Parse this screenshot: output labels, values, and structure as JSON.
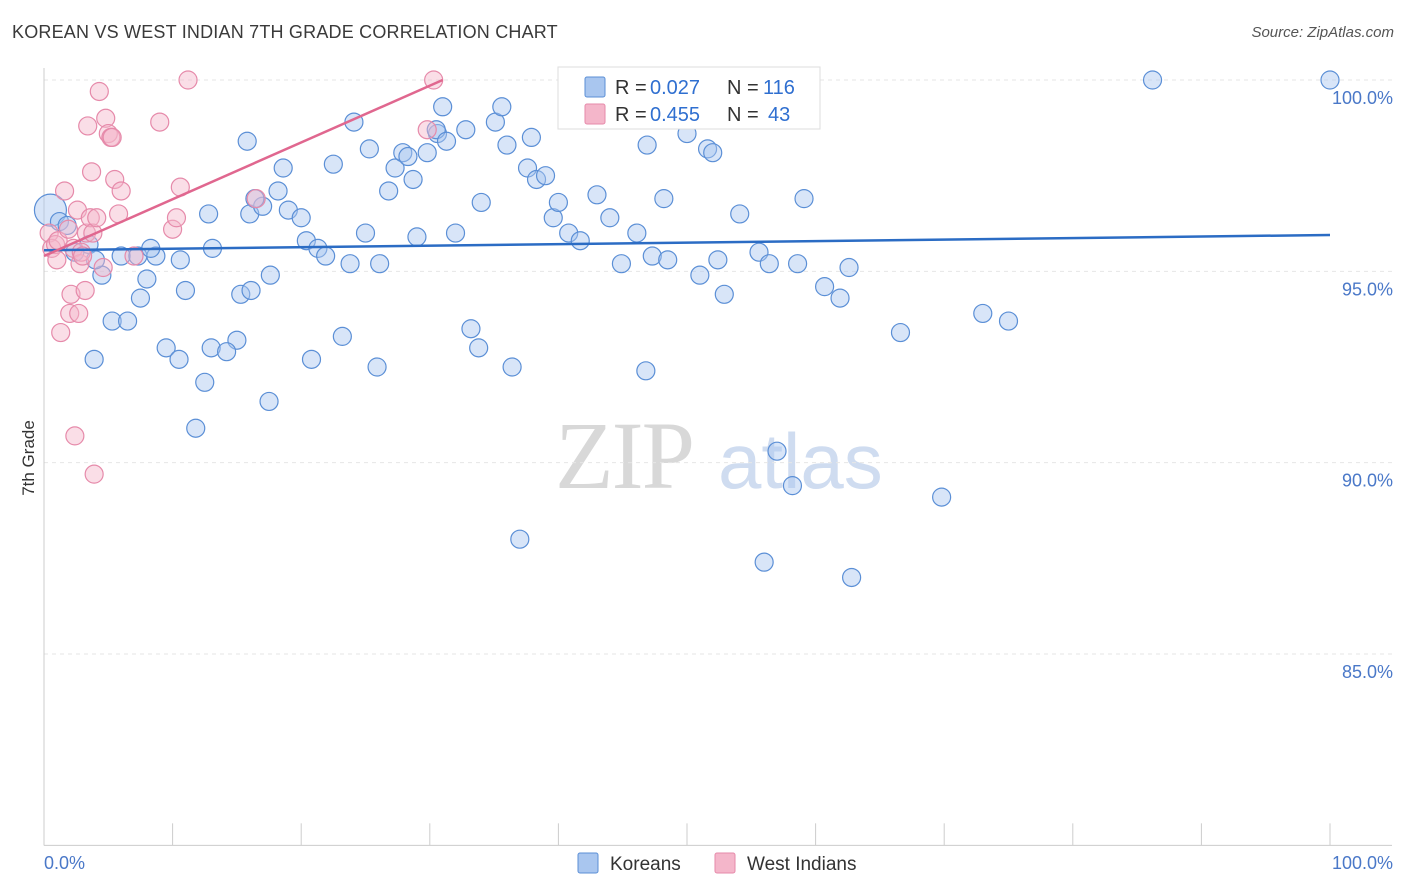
{
  "header": {
    "title": "KOREAN VS WEST INDIAN 7TH GRADE CORRELATION CHART",
    "source": "Source: ZipAtlas.com"
  },
  "chart_data": {
    "type": "scatter",
    "title": "KOREAN VS WEST INDIAN 7TH GRADE CORRELATION CHART",
    "ylabel": "7th Grade",
    "xlabel": "",
    "xlim": [
      0,
      100
    ],
    "ylim": [
      80.0,
      101.0
    ],
    "x_tick_labels": [
      "0.0%",
      "100.0%"
    ],
    "y_ticks": [
      {
        "value": 100,
        "label": "100.0%"
      },
      {
        "value": 95,
        "label": "95.0%"
      },
      {
        "value": 90,
        "label": "90.0%"
      },
      {
        "value": 85,
        "label": "85.0%"
      }
    ],
    "grid": true,
    "legend_position": "top-center",
    "watermark": "ZIPatlas",
    "colors": {
      "koreans_fill": "#a9c6ef",
      "koreans_stroke": "#5b8fd6",
      "koreans_line": "#2b6cc4",
      "west_indians_fill": "#f4b6ca",
      "west_indians_stroke": "#e68aaa",
      "west_indians_line": "#e0678f",
      "tick_text": "#4a78c8"
    },
    "legend": [
      {
        "name": "Koreans",
        "r_label": "R =",
        "r_value": "0.027",
        "n_label": "N =",
        "n_value": "116"
      },
      {
        "name": "West Indians",
        "r_label": "R =",
        "r_value": "0.455",
        "n_label": "N =",
        "n_value": "43"
      }
    ],
    "series": [
      {
        "name": "Koreans",
        "trend": {
          "x": [
            0,
            100
          ],
          "y": [
            95.55,
            95.95
          ]
        },
        "points": [
          [
            0.5,
            96.6
          ],
          [
            1.2,
            96.3
          ],
          [
            1.8,
            96.2
          ],
          [
            3.5,
            95.7
          ],
          [
            2.4,
            95.5
          ],
          [
            4.5,
            94.9
          ],
          [
            4.0,
            95.3
          ],
          [
            6.0,
            95.4
          ],
          [
            7.3,
            95.4
          ],
          [
            8.7,
            95.4
          ],
          [
            5.3,
            93.7
          ],
          [
            6.5,
            93.7
          ],
          [
            7.5,
            94.3
          ],
          [
            8.0,
            94.8
          ],
          [
            8.3,
            95.6
          ],
          [
            10.6,
            95.3
          ],
          [
            9.5,
            93.0
          ],
          [
            10.5,
            92.7
          ],
          [
            3.9,
            92.7
          ],
          [
            12.5,
            92.1
          ],
          [
            11.0,
            94.5
          ],
          [
            12.8,
            96.5
          ],
          [
            13.1,
            95.6
          ],
          [
            11.8,
            90.9
          ],
          [
            13.0,
            93.0
          ],
          [
            15.0,
            93.2
          ],
          [
            15.3,
            94.4
          ],
          [
            16.1,
            94.5
          ],
          [
            14.2,
            92.9
          ],
          [
            15.8,
            98.4
          ],
          [
            16.0,
            96.5
          ],
          [
            17.0,
            96.7
          ],
          [
            16.4,
            96.9
          ],
          [
            17.5,
            91.6
          ],
          [
            17.6,
            94.9
          ],
          [
            18.2,
            97.1
          ],
          [
            18.6,
            97.7
          ],
          [
            19.0,
            96.6
          ],
          [
            20.0,
            96.4
          ],
          [
            20.4,
            95.8
          ],
          [
            20.8,
            92.7
          ],
          [
            21.3,
            95.6
          ],
          [
            21.9,
            95.4
          ],
          [
            22.5,
            97.8
          ],
          [
            23.2,
            93.3
          ],
          [
            23.8,
            95.2
          ],
          [
            24.1,
            98.9
          ],
          [
            25.0,
            96.0
          ],
          [
            25.3,
            98.2
          ],
          [
            25.9,
            92.5
          ],
          [
            26.1,
            95.2
          ],
          [
            26.8,
            97.1
          ],
          [
            27.3,
            97.7
          ],
          [
            27.9,
            98.1
          ],
          [
            28.3,
            98.0
          ],
          [
            28.7,
            97.4
          ],
          [
            29.0,
            95.9
          ],
          [
            29.8,
            98.1
          ],
          [
            30.6,
            98.6
          ],
          [
            31.0,
            99.3
          ],
          [
            30.5,
            98.7
          ],
          [
            31.3,
            98.4
          ],
          [
            32.0,
            96.0
          ],
          [
            32.8,
            98.7
          ],
          [
            33.2,
            93.5
          ],
          [
            33.8,
            93.0
          ],
          [
            34.0,
            96.8
          ],
          [
            35.1,
            98.9
          ],
          [
            35.6,
            99.3
          ],
          [
            36.0,
            98.3
          ],
          [
            36.4,
            92.5
          ],
          [
            37.0,
            88.0
          ],
          [
            37.6,
            97.7
          ],
          [
            37.9,
            98.5
          ],
          [
            38.3,
            97.4
          ],
          [
            39.0,
            97.5
          ],
          [
            39.6,
            96.4
          ],
          [
            40.0,
            96.8
          ],
          [
            40.8,
            96.0
          ],
          [
            41.4,
            99.0
          ],
          [
            41.7,
            95.8
          ],
          [
            42.5,
            100.0
          ],
          [
            43.0,
            97.0
          ],
          [
            44.0,
            96.4
          ],
          [
            44.9,
            95.2
          ],
          [
            46.1,
            96.0
          ],
          [
            46.8,
            92.4
          ],
          [
            46.9,
            98.3
          ],
          [
            47.3,
            95.4
          ],
          [
            48.2,
            96.9
          ],
          [
            48.5,
            95.3
          ],
          [
            49.1,
            99.6
          ],
          [
            50.0,
            98.6
          ],
          [
            50.6,
            100.0
          ],
          [
            51.0,
            94.9
          ],
          [
            51.6,
            98.2
          ],
          [
            52.0,
            98.1
          ],
          [
            52.4,
            95.3
          ],
          [
            52.9,
            94.4
          ],
          [
            54.1,
            96.5
          ],
          [
            55.0,
            100.0
          ],
          [
            55.6,
            95.5
          ],
          [
            56.0,
            87.4
          ],
          [
            56.4,
            95.2
          ],
          [
            57.0,
            90.3
          ],
          [
            58.2,
            89.4
          ],
          [
            58.6,
            95.2
          ],
          [
            59.1,
            96.9
          ],
          [
            60.7,
            94.6
          ],
          [
            61.9,
            94.3
          ],
          [
            62.6,
            95.1
          ],
          [
            62.8,
            87.0
          ],
          [
            66.6,
            93.4
          ],
          [
            69.8,
            89.1
          ],
          [
            73.0,
            93.9
          ],
          [
            75.0,
            93.7
          ],
          [
            86.2,
            100.0
          ],
          [
            100.0,
            100.0
          ]
        ]
      },
      {
        "name": "West Indians",
        "trend": {
          "x": [
            0,
            31
          ],
          "y": [
            95.4,
            100.0
          ]
        },
        "points": [
          [
            0.4,
            96.0
          ],
          [
            0.6,
            95.6
          ],
          [
            0.9,
            95.7
          ],
          [
            1.0,
            95.3
          ],
          [
            1.1,
            95.8
          ],
          [
            1.3,
            93.4
          ],
          [
            1.6,
            97.1
          ],
          [
            1.9,
            96.1
          ],
          [
            2.0,
            93.9
          ],
          [
            2.1,
            94.4
          ],
          [
            2.3,
            95.6
          ],
          [
            2.4,
            90.7
          ],
          [
            2.6,
            96.6
          ],
          [
            2.7,
            93.9
          ],
          [
            2.8,
            95.2
          ],
          [
            2.9,
            95.5
          ],
          [
            3.0,
            95.4
          ],
          [
            3.2,
            94.5
          ],
          [
            3.3,
            96.0
          ],
          [
            3.4,
            98.8
          ],
          [
            3.6,
            96.4
          ],
          [
            3.7,
            97.6
          ],
          [
            3.8,
            96.0
          ],
          [
            3.9,
            89.7
          ],
          [
            4.1,
            96.4
          ],
          [
            4.3,
            99.7
          ],
          [
            4.6,
            95.1
          ],
          [
            4.8,
            99.0
          ],
          [
            5.0,
            98.6
          ],
          [
            5.2,
            98.5
          ],
          [
            5.3,
            98.5
          ],
          [
            5.5,
            97.4
          ],
          [
            5.8,
            96.5
          ],
          [
            6.0,
            97.1
          ],
          [
            7.0,
            95.4
          ],
          [
            9.0,
            98.9
          ],
          [
            10.0,
            96.1
          ],
          [
            10.3,
            96.4
          ],
          [
            10.6,
            97.2
          ],
          [
            11.2,
            100.0
          ],
          [
            16.5,
            96.9
          ],
          [
            29.8,
            98.7
          ],
          [
            30.3,
            100.0
          ]
        ]
      }
    ]
  },
  "bottom_legend": {
    "koreans": "Koreans",
    "west_indians": "West Indians"
  }
}
